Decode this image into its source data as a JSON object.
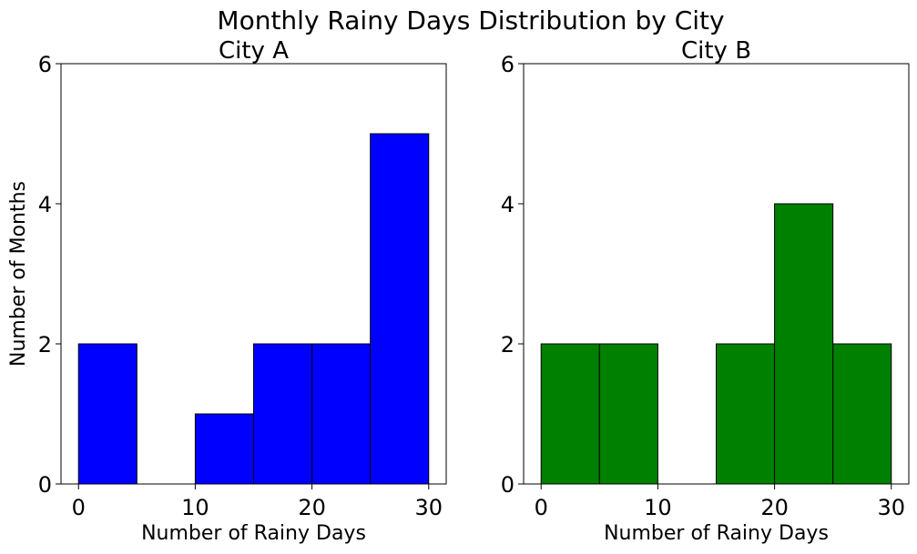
{
  "figure": {
    "title": "Monthly Rainy Days Distribution by City"
  },
  "chart_data": [
    {
      "type": "bar",
      "title": "City A",
      "xlabel": "Number of Rainy Days",
      "ylabel": "Number of Months",
      "xlim": [
        -1.5,
        31.5
      ],
      "ylim": [
        0,
        6
      ],
      "xticks": [
        0,
        10,
        20,
        30
      ],
      "yticks": [
        0,
        2,
        4,
        6
      ],
      "bin_edges": [
        0,
        5,
        10,
        15,
        20,
        25,
        30
      ],
      "counts": [
        2,
        0,
        1,
        2,
        2,
        5
      ],
      "color": "#0000ff",
      "edgecolor": "#000000"
    },
    {
      "type": "bar",
      "title": "City B",
      "xlabel": "Number of Rainy Days",
      "ylabel": "",
      "xlim": [
        -1.5,
        31.5
      ],
      "ylim": [
        0,
        6
      ],
      "xticks": [
        0,
        10,
        20,
        30
      ],
      "yticks": [
        0,
        2,
        4,
        6
      ],
      "bin_edges": [
        0,
        5,
        10,
        15,
        20,
        25,
        30
      ],
      "counts": [
        2,
        2,
        0,
        2,
        4,
        2
      ],
      "color": "#008000",
      "edgecolor": "#000000"
    }
  ]
}
